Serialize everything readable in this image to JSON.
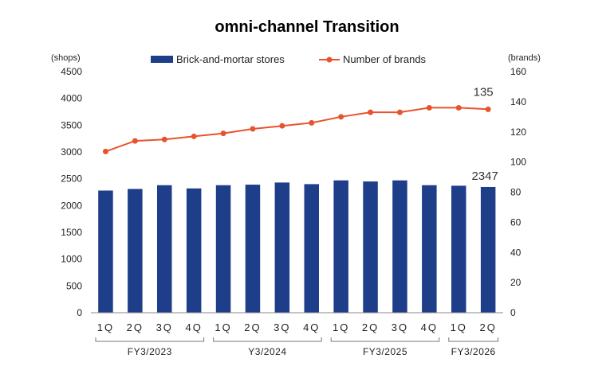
{
  "chart_data": {
    "type": "bar",
    "title": "omni-channel Transition",
    "categories": [
      "1Q",
      "2Q",
      "3Q",
      "4Q",
      "1Q",
      "2Q",
      "3Q",
      "4Q",
      "1Q",
      "2Q",
      "3Q",
      "4Q",
      "1Q",
      "2Q"
    ],
    "groups": [
      {
        "label": "FY3/2023",
        "start": 0,
        "end": 3
      },
      {
        "label": "Y3/2024",
        "start": 4,
        "end": 7
      },
      {
        "label": "FY3/2025",
        "start": 8,
        "end": 11
      },
      {
        "label": "FY3/2026",
        "start": 12,
        "end": 13
      }
    ],
    "series": [
      {
        "name": "Brick-and-mortar stores",
        "type": "bar",
        "axis": "left",
        "color": "#1f3e8a",
        "values": [
          2280,
          2310,
          2380,
          2320,
          2380,
          2390,
          2430,
          2400,
          2470,
          2450,
          2470,
          2380,
          2370,
          2347
        ]
      },
      {
        "name": "Number of brands",
        "type": "line",
        "axis": "right",
        "color": "#e8532d",
        "values": [
          107,
          114,
          115,
          117,
          119,
          122,
          124,
          126,
          130,
          133,
          133,
          136,
          136,
          135
        ]
      }
    ],
    "data_labels": [
      {
        "series": 0,
        "index": 13,
        "text": "2347"
      },
      {
        "series": 1,
        "index": 13,
        "text": "135"
      }
    ],
    "y_left": {
      "unit": "(shops)",
      "min": 0,
      "max": 4500,
      "ticks": [
        0,
        500,
        1000,
        1500,
        2000,
        2500,
        3000,
        3500,
        4000,
        4500
      ]
    },
    "y_right": {
      "unit": "(brands)",
      "min": 0,
      "max": 160,
      "ticks": [
        0,
        20,
        40,
        60,
        80,
        100,
        120,
        140,
        160
      ]
    },
    "grid": false,
    "legend_position": "top"
  }
}
